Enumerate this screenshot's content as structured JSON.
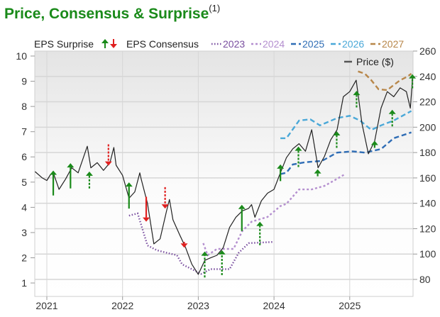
{
  "title": "Price, Consensus & Surprise",
  "title_footnote": "(1)",
  "chart_data": {
    "type": "line",
    "title": "Price, Consensus & Surprise",
    "legend": {
      "placement": "top",
      "surprise_label": "EPS Surprise",
      "consensus_label": "EPS Consensus",
      "price_label": "Price ($)"
    },
    "colors": {
      "up": "#1a8a1a",
      "down": "#e02020",
      "price": "#222222",
      "2023": "#7a4fa0",
      "2024": "#b48fcf",
      "2025": "#2f6db5",
      "2026": "#4aa8d8",
      "2027": "#b8874a"
    },
    "x_ticks": [
      "2021",
      "2022",
      "2023",
      "2024",
      "2025"
    ],
    "x_range": [
      "2020-11-05",
      "2025-11-01"
    ],
    "left_axis": {
      "label": "EPS",
      "ticks": [
        1,
        2,
        3,
        4,
        5,
        6,
        7,
        8,
        9,
        10
      ]
    },
    "right_axis": {
      "label": "Price ($)",
      "ticks": [
        80,
        100,
        120,
        140,
        160,
        180,
        200,
        220,
        240,
        260
      ]
    },
    "grid": true,
    "price": [
      [
        "2020-11-05",
        165
      ],
      [
        "2020-12-10",
        160
      ],
      [
        "2021-01-01",
        158
      ],
      [
        "2021-01-20",
        163
      ],
      [
        "2021-02-01",
        164
      ],
      [
        "2021-03-01",
        151
      ],
      [
        "2021-04-01",
        159
      ],
      [
        "2021-05-01",
        168
      ],
      [
        "2021-06-01",
        164
      ],
      [
        "2021-07-15",
        185
      ],
      [
        "2021-08-01",
        168
      ],
      [
        "2021-09-01",
        172
      ],
      [
        "2021-10-01",
        166
      ],
      [
        "2021-11-01",
        172
      ],
      [
        "2021-11-20",
        184
      ],
      [
        "2021-12-01",
        170
      ],
      [
        "2022-01-01",
        162
      ],
      [
        "2022-02-01",
        144
      ],
      [
        "2022-03-01",
        149
      ],
      [
        "2022-03-25",
        164
      ],
      [
        "2022-04-01",
        159
      ],
      [
        "2022-05-01",
        140
      ],
      [
        "2022-06-01",
        108
      ],
      [
        "2022-07-01",
        112
      ],
      [
        "2022-08-01",
        134
      ],
      [
        "2022-08-15",
        143
      ],
      [
        "2022-09-01",
        127
      ],
      [
        "2022-10-01",
        116
      ],
      [
        "2022-11-01",
        105
      ],
      [
        "2022-12-01",
        92
      ],
      [
        "2023-01-01",
        84
      ],
      [
        "2023-02-01",
        95
      ],
      [
        "2023-03-01",
        97
      ],
      [
        "2023-04-01",
        99
      ],
      [
        "2023-05-01",
        105
      ],
      [
        "2023-06-01",
        121
      ],
      [
        "2023-07-01",
        129
      ],
      [
        "2023-08-01",
        134
      ],
      [
        "2023-09-01",
        136
      ],
      [
        "2023-09-15",
        139
      ],
      [
        "2023-10-01",
        129
      ],
      [
        "2023-11-01",
        142
      ],
      [
        "2023-12-01",
        148
      ],
      [
        "2024-01-01",
        151
      ],
      [
        "2024-02-01",
        164
      ],
      [
        "2024-03-01",
        176
      ],
      [
        "2024-04-01",
        183
      ],
      [
        "2024-05-01",
        187
      ],
      [
        "2024-06-01",
        181
      ],
      [
        "2024-07-01",
        198
      ],
      [
        "2024-08-01",
        168
      ],
      [
        "2024-09-01",
        177
      ],
      [
        "2024-10-01",
        190
      ],
      [
        "2024-11-01",
        198
      ],
      [
        "2024-12-01",
        224
      ],
      [
        "2025-01-01",
        228
      ],
      [
        "2025-02-01",
        237
      ],
      [
        "2025-03-01",
        203
      ],
      [
        "2025-04-01",
        179
      ],
      [
        "2025-05-01",
        189
      ],
      [
        "2025-06-01",
        215
      ],
      [
        "2025-07-01",
        228
      ],
      [
        "2025-08-01",
        224
      ],
      [
        "2025-09-01",
        231
      ],
      [
        "2025-10-01",
        228
      ],
      [
        "2025-10-20",
        215
      ],
      [
        "2025-11-01",
        241
      ]
    ],
    "consensus": [
      {
        "name": "2023",
        "style": "dotted",
        "points": [
          [
            "2022-02-01",
            3.67
          ],
          [
            "2022-03-15",
            3.76
          ],
          [
            "2022-05-01",
            2.49
          ],
          [
            "2022-06-15",
            2.3
          ],
          [
            "2022-08-01",
            2.2
          ],
          [
            "2022-09-20",
            2.1
          ],
          [
            "2022-10-15",
            1.74
          ],
          [
            "2022-12-01",
            1.55
          ],
          [
            "2023-01-15",
            1.36
          ],
          [
            "2023-03-01",
            1.55
          ],
          [
            "2023-06-01",
            1.55
          ],
          [
            "2023-07-15",
            2.2
          ],
          [
            "2023-09-01",
            2.58
          ],
          [
            "2023-12-31",
            2.63
          ]
        ]
      },
      {
        "name": "2024",
        "style": "dashed-short",
        "points": [
          [
            "2023-01-25",
            2.58
          ],
          [
            "2023-02-15",
            2.1
          ],
          [
            "2023-04-01",
            2.35
          ],
          [
            "2023-06-20",
            2.35
          ],
          [
            "2023-08-01",
            3.06
          ],
          [
            "2023-09-15",
            3.43
          ],
          [
            "2023-12-01",
            3.62
          ],
          [
            "2024-02-01",
            4.05
          ],
          [
            "2024-03-01",
            4.14
          ],
          [
            "2024-05-01",
            4.71
          ],
          [
            "2024-07-01",
            4.71
          ],
          [
            "2024-09-01",
            4.85
          ],
          [
            "2024-11-01",
            5.13
          ],
          [
            "2024-12-10",
            5.32
          ]
        ]
      },
      {
        "name": "2025",
        "style": "dashed",
        "points": [
          [
            "2024-02-01",
            5.32
          ],
          [
            "2024-03-01",
            5.37
          ],
          [
            "2024-04-01",
            5.7
          ],
          [
            "2024-06-01",
            5.79
          ],
          [
            "2024-08-20",
            5.84
          ],
          [
            "2024-11-01",
            6.17
          ],
          [
            "2025-01-15",
            6.22
          ],
          [
            "2025-03-15",
            6.17
          ],
          [
            "2025-06-01",
            6.31
          ],
          [
            "2025-08-01",
            6.74
          ],
          [
            "2025-10-25",
            6.97
          ]
        ]
      },
      {
        "name": "2026",
        "style": "dashed",
        "points": [
          [
            "2024-02-01",
            6.74
          ],
          [
            "2024-03-01",
            6.74
          ],
          [
            "2024-05-01",
            7.44
          ],
          [
            "2024-06-25",
            7.49
          ],
          [
            "2024-08-10",
            7.25
          ],
          [
            "2024-11-01",
            7.54
          ],
          [
            "2025-01-01",
            7.63
          ],
          [
            "2025-02-20",
            7.44
          ],
          [
            "2025-04-15",
            7.07
          ],
          [
            "2025-06-01",
            7.25
          ],
          [
            "2025-08-01",
            7.44
          ],
          [
            "2025-10-25",
            7.82
          ]
        ]
      },
      {
        "name": "2027",
        "style": "dashed",
        "points": [
          [
            "2025-02-10",
            9.39
          ],
          [
            "2025-03-15",
            9.3
          ],
          [
            "2025-04-15",
            9.04
          ],
          [
            "2025-05-20",
            8.68
          ],
          [
            "2025-07-01",
            8.65
          ],
          [
            "2025-08-01",
            8.85
          ],
          [
            "2025-09-01",
            9.04
          ],
          [
            "2025-10-05",
            9.18
          ],
          [
            "2025-10-25",
            9.3
          ]
        ]
      }
    ],
    "surprises": [
      {
        "date": "2021-02-01",
        "from": 4.47,
        "to": 5.46,
        "direction": "up",
        "style": "solid"
      },
      {
        "date": "2021-04-25",
        "from": 4.75,
        "to": 5.75,
        "direction": "up",
        "style": "solid"
      },
      {
        "date": "2021-07-25",
        "from": 4.75,
        "to": 5.42,
        "direction": "up",
        "style": "dashed"
      },
      {
        "date": "2021-10-25",
        "from": 6.5,
        "to": 5.65,
        "direction": "down",
        "style": "dashed"
      },
      {
        "date": "2022-02-01",
        "from": 3.95,
        "to": 4.99,
        "direction": "up",
        "style": "solid"
      },
      {
        "date": "2022-04-25",
        "from": 4.42,
        "to": 3.43,
        "direction": "down",
        "style": "solid"
      },
      {
        "date": "2022-07-25",
        "from": 4.8,
        "to": 3.95,
        "direction": "down",
        "style": "dashed"
      },
      {
        "date": "2022-10-25",
        "from": 2.63,
        "to": 2.4,
        "direction": "down",
        "style": "solid"
      },
      {
        "date": "2023-02-01",
        "from": 1.22,
        "to": 2.25,
        "direction": "up",
        "style": "dashed"
      },
      {
        "date": "2023-04-25",
        "from": 1.31,
        "to": 2.3,
        "direction": "up",
        "style": "dashed"
      },
      {
        "date": "2023-07-30",
        "from": 3.06,
        "to": 4.1,
        "direction": "up",
        "style": "solid"
      },
      {
        "date": "2023-10-25",
        "from": 2.5,
        "to": 3.43,
        "direction": "up",
        "style": "dashed"
      },
      {
        "date": "2024-02-01",
        "from": 5.04,
        "to": 5.7,
        "direction": "up",
        "style": "solid"
      },
      {
        "date": "2024-04-28",
        "from": 5.6,
        "to": 6.41,
        "direction": "up",
        "style": "dashed"
      },
      {
        "date": "2024-07-30",
        "from": 5.23,
        "to": 5.51,
        "direction": "up",
        "style": "solid"
      },
      {
        "date": "2024-10-30",
        "from": 6.36,
        "to": 7.02,
        "direction": "up",
        "style": "dashed"
      },
      {
        "date": "2025-02-03",
        "from": 7.96,
        "to": 8.62,
        "direction": "up",
        "style": "dashed"
      },
      {
        "date": "2025-05-01",
        "from": 6.36,
        "to": 6.64,
        "direction": "up",
        "style": "solid"
      },
      {
        "date": "2025-07-25",
        "from": 7.21,
        "to": 7.87,
        "direction": "up",
        "style": "dashed"
      },
      {
        "date": "2025-10-30",
        "from": 8.72,
        "to": 9.28,
        "direction": "up",
        "style": "dashed"
      }
    ]
  }
}
